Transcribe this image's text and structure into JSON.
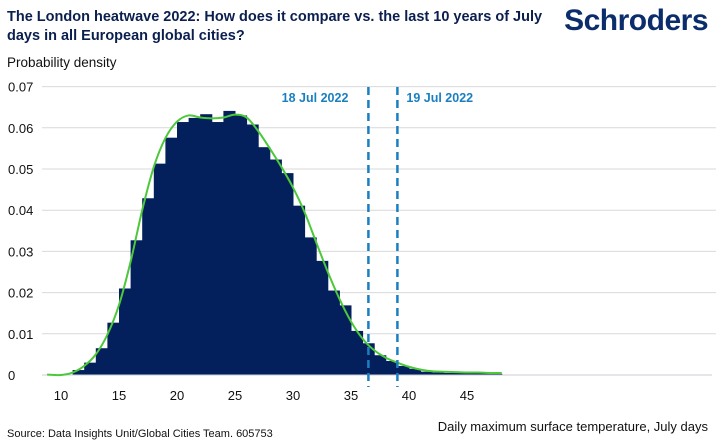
{
  "title": "The London heatwave 2022: How does it compare vs. the last 10 years of July days in all European global cities?",
  "logo": "Schroders",
  "source": "Source: Data Insights Unit/Global Cities Team. 605753",
  "colors": {
    "bars": "#03205c",
    "curve": "#4cc83a",
    "dashed": "#1a7fc0",
    "grid": "#d9d9d9"
  },
  "chart_data": {
    "type": "bar",
    "title": "The London heatwave 2022: How does it compare vs. the last 10 years of July days in all European global cities?",
    "xlabel": "Daily maximum surface temperature, July days",
    "ylabel": "Probability density",
    "xlim": [
      8.8,
      49
    ],
    "ylim": [
      0,
      0.07
    ],
    "grid": true,
    "xticks": [
      "10",
      "15",
      "20",
      "25",
      "30",
      "35",
      "40",
      "45"
    ],
    "xtick_values": [
      10,
      15,
      20,
      25,
      30,
      35,
      40,
      45
    ],
    "yticks": [
      "0",
      "0.01",
      "0.02",
      "0.03",
      "0.04",
      "0.05",
      "0.06",
      "0.07"
    ],
    "ytick_values": [
      0,
      0.01,
      0.02,
      0.03,
      0.04,
      0.05,
      0.06,
      0.07
    ],
    "histogram": {
      "bin_start": 11,
      "bin_width": 1,
      "values": [
        0.0012,
        0.003,
        0.0065,
        0.0127,
        0.021,
        0.0327,
        0.0429,
        0.0513,
        0.0576,
        0.0614,
        0.0624,
        0.0633,
        0.0614,
        0.0641,
        0.063,
        0.0608,
        0.0553,
        0.0523,
        0.049,
        0.0411,
        0.0334,
        0.0277,
        0.0205,
        0.0169,
        0.0107,
        0.0077,
        0.0048,
        0.0034,
        0.0022,
        0.0015,
        0.0008,
        0.0006,
        0.0005,
        0.0005,
        0.0004,
        0.0004,
        0.0003
      ]
    },
    "density_curve": {
      "x": [
        8.8,
        10,
        11,
        12,
        13,
        14,
        15,
        16,
        17,
        18,
        19,
        20,
        21,
        22,
        23,
        24,
        25,
        26,
        27,
        28,
        29,
        30,
        31,
        32,
        33,
        34,
        35,
        36,
        37,
        38,
        39,
        40,
        41,
        42,
        43,
        44,
        45,
        46,
        47,
        48
      ],
      "y": [
        0.0001,
        0.0,
        0.0006,
        0.0022,
        0.005,
        0.0098,
        0.017,
        0.0275,
        0.04,
        0.0505,
        0.0575,
        0.0615,
        0.063,
        0.0625,
        0.0623,
        0.0625,
        0.0632,
        0.0625,
        0.0592,
        0.055,
        0.0505,
        0.0455,
        0.0395,
        0.0322,
        0.025,
        0.0185,
        0.013,
        0.0088,
        0.006,
        0.0042,
        0.003,
        0.002,
        0.0013,
        0.0009,
        0.0008,
        0.0007,
        0.0006,
        0.0006,
        0.0005,
        0.0005
      ]
    },
    "annotations": [
      {
        "label": "18 Jul 2022",
        "x": 36.5
      },
      {
        "label": "19 Jul 2022",
        "x": 39.0
      }
    ]
  }
}
